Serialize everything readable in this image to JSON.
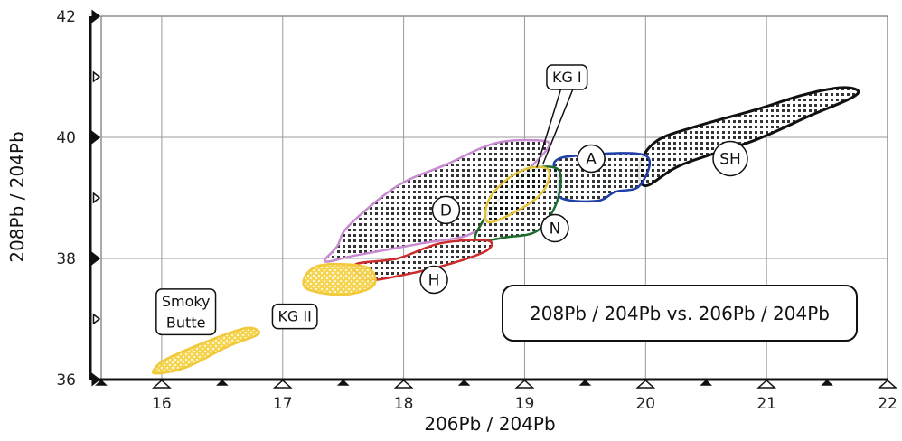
{
  "chart_data": {
    "type": "scatter",
    "title": "208Pb / 204Pb vs. 206Pb / 204Pb",
    "xlabel": "206Pb / 204Pb",
    "ylabel": "208Pb / 204Pb",
    "xlim": [
      15.5,
      22
    ],
    "ylim": [
      36,
      42
    ],
    "grid": true,
    "x_ticks": [
      16,
      17,
      18,
      19,
      20,
      21,
      22
    ],
    "y_ticks": [
      36,
      38,
      40,
      42
    ],
    "fields": [
      {
        "name": "SH",
        "color": "#111111",
        "fill": "dots",
        "points": [
          [
            20.0,
            39.2
          ],
          [
            20.3,
            39.55
          ],
          [
            20.9,
            39.95
          ],
          [
            21.35,
            40.35
          ],
          [
            21.7,
            40.65
          ],
          [
            21.75,
            40.78
          ],
          [
            21.6,
            40.82
          ],
          [
            21.3,
            40.7
          ],
          [
            20.9,
            40.45
          ],
          [
            20.45,
            40.2
          ],
          [
            20.1,
            39.95
          ],
          [
            19.95,
            39.55
          ]
        ]
      },
      {
        "name": "A",
        "color": "#1f3fa8",
        "fill": "dots",
        "points": [
          [
            19.3,
            39.0
          ],
          [
            19.6,
            38.95
          ],
          [
            19.75,
            39.1
          ],
          [
            19.95,
            39.2
          ],
          [
            20.0,
            39.7
          ],
          [
            19.45,
            39.7
          ],
          [
            19.25,
            39.6
          ],
          [
            19.28,
            39.3
          ]
        ]
      },
      {
        "name": "D",
        "color": "#c88ad0",
        "fill": "dots",
        "points": [
          [
            17.35,
            37.95
          ],
          [
            17.6,
            38.05
          ],
          [
            18.15,
            38.25
          ],
          [
            18.55,
            38.4
          ],
          [
            18.75,
            38.8
          ],
          [
            19.0,
            39.4
          ],
          [
            19.2,
            39.85
          ],
          [
            19.1,
            39.95
          ],
          [
            18.75,
            39.9
          ],
          [
            18.35,
            39.55
          ],
          [
            17.95,
            39.2
          ],
          [
            17.55,
            38.55
          ],
          [
            17.45,
            38.2
          ]
        ]
      },
      {
        "name": "N",
        "color": "#1d6b2c",
        "fill": "dots",
        "points": [
          [
            18.6,
            38.3
          ],
          [
            18.85,
            38.35
          ],
          [
            19.1,
            38.45
          ],
          [
            19.25,
            38.85
          ],
          [
            19.3,
            39.3
          ],
          [
            19.25,
            39.5
          ],
          [
            19.05,
            39.45
          ],
          [
            18.8,
            39.0
          ],
          [
            18.65,
            38.6
          ]
        ]
      },
      {
        "name": "KG I",
        "color": "#e3c23a",
        "fill": "dots",
        "points": [
          [
            18.7,
            38.6
          ],
          [
            18.95,
            38.8
          ],
          [
            19.15,
            39.1
          ],
          [
            19.2,
            39.45
          ],
          [
            19.05,
            39.5
          ],
          [
            18.85,
            39.3
          ],
          [
            18.7,
            38.95
          ]
        ]
      },
      {
        "name": "H",
        "color": "#cc2b2b",
        "fill": "dots",
        "points": [
          [
            17.7,
            37.65
          ],
          [
            18.05,
            37.75
          ],
          [
            18.45,
            37.95
          ],
          [
            18.7,
            38.15
          ],
          [
            18.68,
            38.3
          ],
          [
            18.3,
            38.25
          ],
          [
            17.95,
            38.0
          ],
          [
            17.6,
            37.9
          ]
        ]
      },
      {
        "name": "KG II",
        "color": "#f2c93a",
        "fill": "crosshatch",
        "points": [
          [
            17.2,
            37.5
          ],
          [
            17.5,
            37.4
          ],
          [
            17.75,
            37.55
          ],
          [
            17.7,
            37.85
          ],
          [
            17.35,
            37.9
          ],
          [
            17.2,
            37.75
          ]
        ]
      },
      {
        "name": "Smoky Butte",
        "color": "#f2c93a",
        "fill": "crosshatch",
        "points": [
          [
            15.95,
            36.1
          ],
          [
            16.2,
            36.2
          ],
          [
            16.55,
            36.55
          ],
          [
            16.8,
            36.75
          ],
          [
            16.7,
            36.85
          ],
          [
            16.4,
            36.65
          ],
          [
            16.05,
            36.35
          ],
          [
            15.95,
            36.2
          ]
        ]
      }
    ],
    "annotations": [
      {
        "text": "SH",
        "x": 20.7,
        "y": 39.65,
        "style": "circle"
      },
      {
        "text": "A",
        "x": 19.55,
        "y": 39.65,
        "style": "circle"
      },
      {
        "text": "D",
        "x": 18.35,
        "y": 38.8,
        "style": "circle"
      },
      {
        "text": "N",
        "x": 19.25,
        "y": 38.5,
        "style": "circle"
      },
      {
        "text": "H",
        "x": 18.25,
        "y": 37.65,
        "style": "circle"
      },
      {
        "text": "KG I",
        "x": 19.35,
        "y": 41.0,
        "style": "box"
      },
      {
        "text": "KG II",
        "x": 17.1,
        "y": 37.05,
        "style": "box"
      },
      {
        "text": "Smoky",
        "x": 16.2,
        "y": 37.3,
        "style": "box"
      },
      {
        "text": "Butte",
        "x": 16.2,
        "y": 36.95,
        "style": "box"
      }
    ]
  }
}
